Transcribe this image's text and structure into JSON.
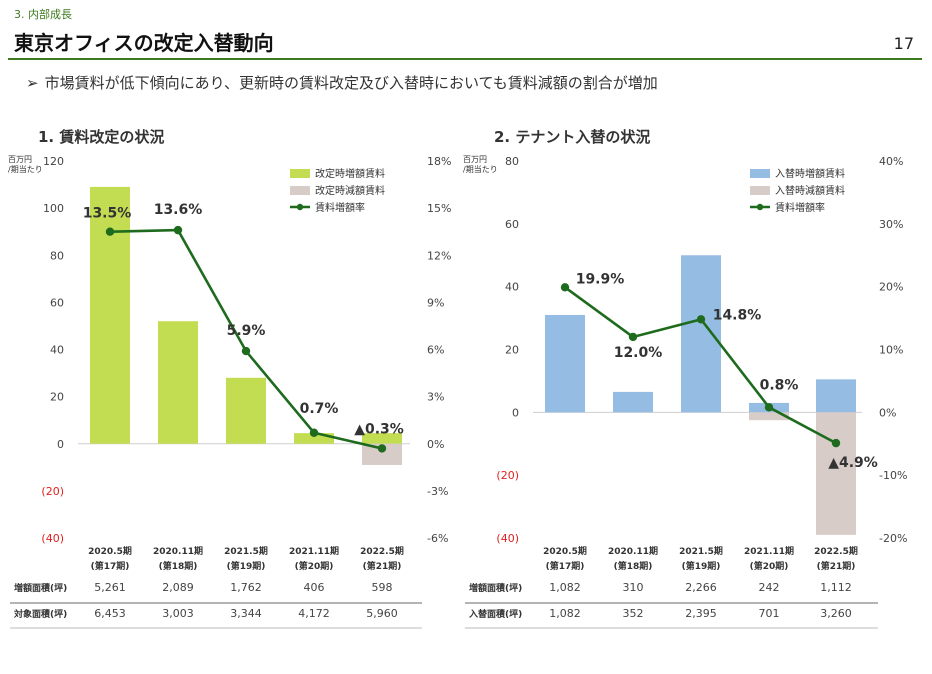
{
  "header": {
    "section": "3. 内部成長",
    "title": "東京オフィスの改定入替動向",
    "page_number": "17",
    "lead_arrow": "➢",
    "lead": "市場賃料が低下傾向にあり、更新時の賃料改定及び入替時においても賃料減額の割合が増加"
  },
  "colors": {
    "green_bar": "#c3dd52",
    "blue_bar": "#95bde3",
    "grey_bar": "#d8ccc8",
    "line": "#1e6b1e",
    "negative": "#e02020",
    "accent": "#3d7a1e"
  },
  "chart_data": [
    {
      "type": "bar+line",
      "title": "1. 賃料改定の状況",
      "left_axis_unit": [
        "百万円",
        "/期当たり"
      ],
      "ylim": [
        -40,
        120
      ],
      "y_ticks": [
        120,
        100,
        80,
        60,
        40,
        20,
        0,
        -20,
        -40
      ],
      "y_tick_labels": [
        "120",
        "100",
        "80",
        "60",
        "40",
        "20",
        "0",
        "(20)",
        "(40)"
      ],
      "y2lim": [
        -6,
        18
      ],
      "y2_ticks": [
        18,
        15,
        12,
        9,
        6,
        3,
        0,
        -3,
        -6
      ],
      "y2_tick_labels": [
        "18%",
        "15%",
        "12%",
        "9%",
        "6%",
        "3%",
        "0%",
        "-3%",
        "-6%"
      ],
      "categories": [
        [
          "2020.5期",
          "(第17期)"
        ],
        [
          "2020.11期",
          "(第18期)"
        ],
        [
          "2021.5期",
          "(第19期)"
        ],
        [
          "2021.11期",
          "(第20期)"
        ],
        [
          "2022.5期",
          "(第21期)"
        ]
      ],
      "series": [
        {
          "name": "改定時増額賃料",
          "kind": "bar",
          "color": "#c3dd52",
          "values": [
            109,
            52,
            28,
            4.5,
            4.5
          ]
        },
        {
          "name": "改定時減額賃料",
          "kind": "bar",
          "color": "#d8ccc8",
          "values": [
            0,
            0,
            0,
            0,
            -9
          ]
        },
        {
          "name": "賃料増額率",
          "kind": "line",
          "axis": "right",
          "color": "#1e6b1e",
          "values": [
            13.5,
            13.6,
            5.9,
            0.7,
            -0.3
          ]
        }
      ],
      "point_labels": [
        "13.5%",
        "13.6%",
        "5.9%",
        "0.7%",
        "▲0.3%"
      ],
      "table": {
        "rows": [
          {
            "label": "増額面積(坪)",
            "values": [
              "5,261",
              "2,089",
              "1,762",
              "406",
              "598"
            ]
          },
          {
            "label": "対象面積(坪)",
            "values": [
              "6,453",
              "3,003",
              "3,344",
              "4,172",
              "5,960"
            ]
          }
        ]
      }
    },
    {
      "type": "bar+line",
      "title": "2. テナント入替の状況",
      "left_axis_unit": [
        "百万円",
        "/期当たり"
      ],
      "ylim": [
        -40,
        80
      ],
      "y_ticks": [
        80,
        60,
        40,
        20,
        0,
        -20,
        -40
      ],
      "y_tick_labels": [
        "80",
        "60",
        "40",
        "20",
        "0",
        "(20)",
        "(40)"
      ],
      "y2lim": [
        -20,
        40
      ],
      "y2_ticks": [
        40,
        30,
        20,
        10,
        0,
        -10,
        -20
      ],
      "y2_tick_labels": [
        "40%",
        "30%",
        "20%",
        "10%",
        "0%",
        "-10%",
        "-20%"
      ],
      "categories": [
        [
          "2020.5期",
          "(第17期)"
        ],
        [
          "2020.11期",
          "(第18期)"
        ],
        [
          "2021.5期",
          "(第19期)"
        ],
        [
          "2021.11期",
          "(第20期)"
        ],
        [
          "2022.5期",
          "(第21期)"
        ]
      ],
      "series": [
        {
          "name": "入替時増額賃料",
          "kind": "bar",
          "color": "#95bde3",
          "values": [
            31,
            6.5,
            50,
            3,
            10.5
          ]
        },
        {
          "name": "入替時減額賃料",
          "kind": "bar",
          "color": "#d8ccc8",
          "values": [
            0,
            0,
            0,
            -2.5,
            -39
          ]
        },
        {
          "name": "賃料増額率",
          "kind": "line",
          "axis": "right",
          "color": "#1e6b1e",
          "values": [
            19.9,
            12.0,
            14.8,
            0.8,
            -4.9
          ]
        }
      ],
      "point_labels": [
        "19.9%",
        "12.0%",
        "14.8%",
        "0.8%",
        "▲4.9%"
      ],
      "table": {
        "rows": [
          {
            "label": "増額面積(坪)",
            "values": [
              "1,082",
              "310",
              "2,266",
              "242",
              "1,112"
            ]
          },
          {
            "label": "入替面積(坪)",
            "values": [
              "1,082",
              "352",
              "2,395",
              "701",
              "3,260"
            ]
          }
        ]
      }
    }
  ]
}
